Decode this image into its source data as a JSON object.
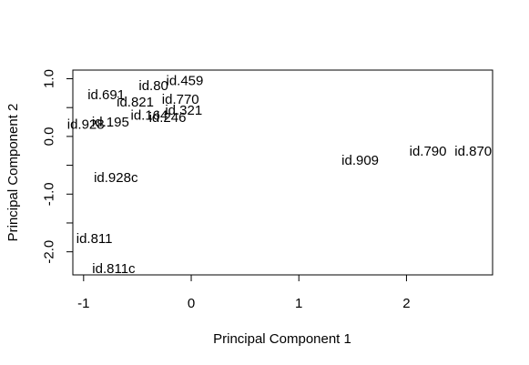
{
  "chart_data": {
    "type": "scatter",
    "title": "",
    "xlabel": "Principal Component 1",
    "ylabel": "Principal Component 2",
    "xlim": [
      -1.1,
      2.8
    ],
    "ylim": [
      -2.4,
      1.15
    ],
    "xticks": [
      -1,
      0,
      1,
      2
    ],
    "yticks": [
      1.0,
      0.5,
      0.0,
      -0.5,
      -1.0,
      -1.5,
      -2.0
    ],
    "ytick_labels": [
      "1.0",
      "",
      "0.0",
      "",
      "-1.0",
      "",
      "-2.0"
    ],
    "points": [
      {
        "label": "id.459",
        "x": -0.06,
        "y": 0.96
      },
      {
        "label": "id.80",
        "x": -0.35,
        "y": 0.87
      },
      {
        "label": "id.691",
        "x": -0.79,
        "y": 0.72
      },
      {
        "label": "id.770",
        "x": -0.1,
        "y": 0.64
      },
      {
        "label": "id.821",
        "x": -0.52,
        "y": 0.59
      },
      {
        "label": "id.321",
        "x": -0.07,
        "y": 0.45
      },
      {
        "label": "id.164",
        "x": -0.39,
        "y": 0.36
      },
      {
        "label": "id.246",
        "x": -0.22,
        "y": 0.32
      },
      {
        "label": "id.195",
        "x": -0.75,
        "y": 0.24
      },
      {
        "label": "id.928",
        "x": -0.98,
        "y": 0.2
      },
      {
        "label": "id.790",
        "x": 2.2,
        "y": -0.26
      },
      {
        "label": "id.870",
        "x": 2.62,
        "y": -0.26
      },
      {
        "label": "id.909",
        "x": 1.57,
        "y": -0.42
      },
      {
        "label": "id.928c",
        "x": -0.7,
        "y": -0.72
      },
      {
        "label": "id.811",
        "x": -0.9,
        "y": -1.78
      },
      {
        "label": "id.811c",
        "x": -0.72,
        "y": -2.3
      }
    ]
  }
}
